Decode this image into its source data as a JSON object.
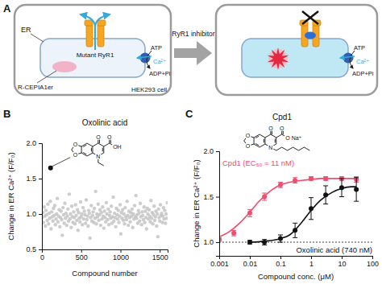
{
  "diagram": {
    "panel": "A",
    "left": {
      "compartment": "ER",
      "channel": "Mutant RyR1",
      "pump_labels": [
        "ATP",
        "Ca²⁺",
        "ADP+Pi"
      ],
      "sensor": "R-CEPIA1er",
      "cell": "HEK293 cell"
    },
    "arrow_label": "RyR1 inhibitor",
    "right": {
      "pump_labels": [
        "ATP",
        "Ca²⁺",
        "ADP+Pi"
      ]
    }
  },
  "chart_data": [
    {
      "type": "scatter",
      "panel": "B",
      "title": "Oxolinic acid",
      "x_label": "Compound number",
      "y_label": "Change in ER Ca²⁺ (F/F₀)",
      "structure_labels": [
        "O",
        "O",
        "O",
        "O",
        "OH",
        "N"
      ],
      "xlim": [
        0,
        1600
      ],
      "xticks": [
        0,
        500,
        1000,
        1500
      ],
      "ylim": [
        0.5,
        2.0
      ],
      "yticks": [
        0.5,
        {
          "value": 1,
          "label": "1.0"
        },
        1.5,
        {
          "value": 2,
          "label": "2.0"
        }
      ],
      "grid": false,
      "series": [
        {
          "type": "scatter",
          "marker": "circle",
          "color": "#c4c4c4",
          "x": [
            4,
            12,
            20,
            28,
            36,
            44,
            52,
            60,
            68,
            76,
            84,
            92,
            100,
            108,
            116,
            124,
            132,
            140,
            148,
            156,
            164,
            172,
            180,
            188,
            196,
            204,
            212,
            220,
            228,
            236,
            244,
            252,
            260,
            268,
            276,
            284,
            292,
            300,
            308,
            316,
            324,
            332,
            340,
            348,
            356,
            364,
            372,
            380,
            388,
            396,
            404,
            412,
            420,
            428,
            436,
            444,
            452,
            460,
            468,
            476,
            484,
            492,
            500,
            508,
            516,
            524,
            532,
            540,
            548,
            556,
            564,
            572,
            580,
            588,
            596,
            604,
            612,
            620,
            628,
            636,
            644,
            652,
            660,
            668,
            676,
            684,
            692,
            700,
            708,
            716,
            724,
            732,
            740,
            748,
            756,
            764,
            772,
            780,
            788,
            796,
            804,
            812,
            820,
            828,
            836,
            844,
            852,
            860,
            868,
            876,
            884,
            892,
            900,
            908,
            916,
            924,
            932,
            940,
            948,
            956,
            964,
            972,
            980,
            988,
            996,
            1004,
            1012,
            1020,
            1028,
            1036,
            1044,
            1052,
            1060,
            1068,
            1076,
            1084,
            1092,
            1100,
            1108,
            1116,
            1124,
            1132,
            1140,
            1148,
            1156,
            1164,
            1172,
            1180,
            1188,
            1196,
            1204,
            1212,
            1220,
            1228,
            1236,
            1244,
            1252,
            1260,
            1268,
            1276,
            1284,
            1292,
            1300,
            1308,
            1316,
            1324,
            1332,
            1340,
            1348,
            1356,
            1364,
            1372,
            1380,
            1388,
            1396,
            1404,
            1412,
            1420,
            1428,
            1436,
            1444,
            1452,
            1460,
            1468,
            1476,
            1484,
            1492,
            1500,
            1508,
            1516,
            1524,
            1532,
            1540,
            1548,
            1556,
            1564,
            1572,
            1580,
            1588,
            1596
          ],
          "values": [
            0.95,
            1.02,
            0.88,
            1.1,
            0.97,
            0.83,
            1.05,
            0.99,
            0.91,
            1.14,
            0.86,
            1.01,
            0.94,
            1.18,
            0.79,
            1.03,
            0.96,
            0.9,
            1.08,
            0.98,
            1.12,
            0.85,
            0.93,
            1.0,
            1.22,
            0.89,
            0.97,
            1.06,
            0.82,
            0.95,
            1.04,
            0.92,
            0.7,
            1.09,
            0.99,
            0.87,
            1.15,
            0.94,
            1.01,
            0.84,
            0.97,
            1.07,
            0.9,
            1.28,
            0.93,
            1.0,
            0.81,
            1.11,
            0.96,
            0.88,
            1.03,
            0.95,
            0.86,
            1.13,
            0.98,
            0.91,
            1.06,
            0.77,
            1.02,
            0.94,
            0.89,
            1.17,
            0.96,
            1.0,
            0.85,
            1.09,
            0.93,
            1.04,
            0.99,
            0.87,
            1.2,
            0.92,
            0.97,
            0.83,
            1.05,
            1.01,
            0.66,
            0.95,
            1.12,
            0.9,
            0.98,
            1.03,
            0.88,
            1.08,
            0.94,
            1.32,
            0.86,
            1.0,
            0.96,
            1.14,
            0.91,
            0.99,
            1.06,
            0.84,
            1.02,
            0.93,
            1.1,
            0.97,
            0.8,
            1.04,
            0.95,
            0.89,
            1.16,
            1.0,
            0.92,
            1.07,
            0.85,
            0.98,
            1.03,
            0.94,
            1.11,
            0.87,
            0.96,
            1.24,
            0.9,
            1.01,
            0.95,
            0.82,
            1.08,
            0.99,
            0.93,
            1.05,
            0.88,
            0.97,
            1.13,
            0.72,
            1.02,
            0.94,
            1.06,
            0.91,
            1.0,
            0.86,
            1.09,
            0.96,
            0.92,
            1.18,
            0.98,
            0.84,
            1.04,
            0.95,
            0.89,
            1.02,
            0.97,
            1.07,
            0.81,
            1.0,
            0.93,
            1.12,
            0.96,
            1.26,
            0.94,
            0.99,
            0.87,
            1.05,
            1.01,
            0.9,
            1.15,
            0.96,
            0.85,
            1.03,
            0.98,
            0.92,
            1.1,
            0.88,
            1.04,
            0.95,
            0.79,
            1.08,
            1.0,
            0.93,
            1.06,
            0.97,
            0.89,
            1.19,
            0.94,
            1.02,
            0.86,
            0.99,
            1.11,
            0.91,
            0.96,
            1.04,
            0.83,
            1.0,
            0.68,
            1.07,
            0.95,
            0.9,
            1.13,
            0.98,
            1.01,
            0.88,
            0.97,
            1.09,
            0.93,
            1.05,
            0.87,
            1.0,
            0.94,
            1.16
          ]
        },
        {
          "type": "scatter",
          "marker": "circle",
          "color": "#111111",
          "x": [
            110
          ],
          "values": [
            1.65
          ]
        }
      ]
    },
    {
      "type": "scatter",
      "panel": "C",
      "title": "Cpd1",
      "x_label": "Compound conc. (μM)",
      "y_label": "Change in ER Ca²⁺ (F/F₀)",
      "structure_labels": [
        "O",
        "O",
        "O",
        "O",
        "O",
        "N",
        "Na⁺"
      ],
      "log": "x",
      "xlim": [
        0.001,
        100
      ],
      "xticks": [
        0.001,
        0.01,
        0.1,
        1,
        10,
        100
      ],
      "ylim": [
        0.85,
        2.0
      ],
      "yticks": [
        {
          "value": 1,
          "label": "1.0"
        },
        1.5,
        {
          "value": 2,
          "label": "2.0"
        }
      ],
      "grid": false,
      "reference_lines": [
        {
          "value": 1,
          "line_style": "dotted"
        }
      ],
      "series": [
        {
          "type": "line",
          "line_style": "solid",
          "color": "#ee4d6e",
          "x": [
            0.001,
            0.002,
            0.005,
            0.01,
            0.02,
            0.05,
            0.1,
            0.2,
            0.5,
            1,
            2,
            5,
            10,
            20,
            30
          ],
          "values": [
            1.06,
            1.11,
            1.22,
            1.33,
            1.45,
            1.57,
            1.63,
            1.66,
            1.68,
            1.69,
            1.7,
            1.7,
            1.7,
            1.7,
            1.7
          ]
        },
        {
          "type": "line",
          "line_style": "solid",
          "color": "#111111",
          "x": [
            0.01,
            0.03,
            0.1,
            0.2,
            0.5,
            1,
            2,
            5,
            10,
            20,
            30
          ],
          "values": [
            1.0,
            1.01,
            1.04,
            1.08,
            1.22,
            1.35,
            1.46,
            1.55,
            1.59,
            1.61,
            1.61
          ]
        },
        {
          "type": "scatter",
          "marker": "circle",
          "name": "Cpd1 (EC₅₀ = 11 nM)",
          "color": "#ee4d6e",
          "x": [
            0.001,
            0.003,
            0.01,
            0.03,
            0.1,
            0.3,
            1,
            3,
            10,
            30
          ],
          "values": [
            1.03,
            1.1,
            1.32,
            1.5,
            1.63,
            1.68,
            1.7,
            1.7,
            1.7,
            1.69
          ],
          "errors": [
            0.02,
            0.03,
            0.04,
            0.04,
            0.03,
            0.03,
            0.02,
            0.02,
            0.02,
            0.03
          ]
        },
        {
          "type": "scatter",
          "marker": "circle",
          "name": "Oxolinic acid (740 nM)",
          "color": "#111111",
          "x": [
            0.01,
            0.03,
            0.1,
            0.3,
            1,
            3,
            10,
            30
          ],
          "values": [
            1.0,
            1.0,
            1.04,
            1.13,
            1.37,
            1.52,
            1.6,
            1.58
          ],
          "errors": [
            0.02,
            0.03,
            0.04,
            0.08,
            0.12,
            0.1,
            0.1,
            0.13
          ]
        }
      ]
    }
  ]
}
